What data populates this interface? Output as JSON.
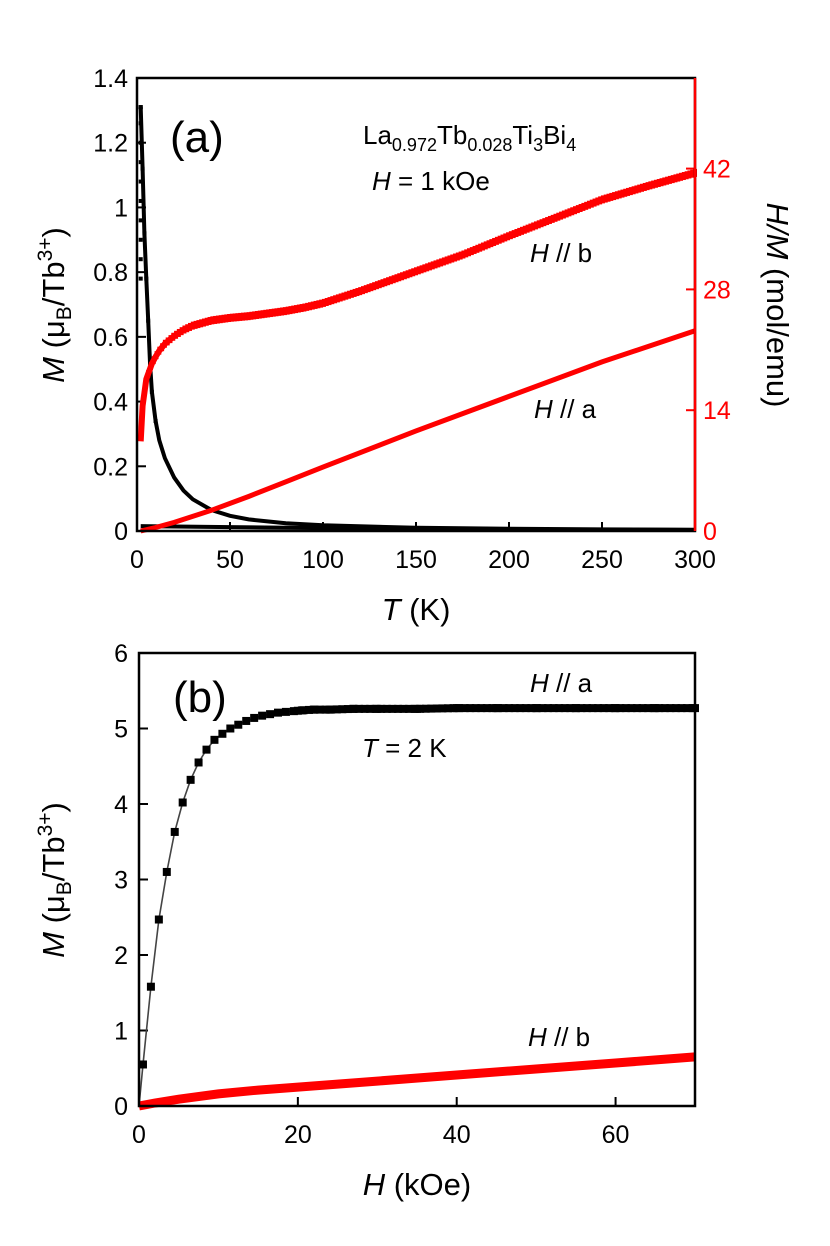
{
  "colors": {
    "black_series": "#000000",
    "red_series": "#ff0000",
    "axis": "#000000",
    "right_axis": "#ff0000"
  },
  "chart_data": [
    {
      "type": "line",
      "panel_label": "(a)",
      "compound": {
        "part1": "La",
        "sub1": "0.972",
        "part2": "Tb",
        "sub2": "0.028",
        "part3": "Ti",
        "sub3": "3",
        "part4": "Bi",
        "sub4": "4"
      },
      "field_label": {
        "var": "H",
        "rest": " = 1 kOe"
      },
      "xlabel": {
        "var": "T",
        "rest": " (K)"
      },
      "ylabel": {
        "var": "M",
        "rest_open": " (μ",
        "sub": "B",
        "rest_mid": "/Tb",
        "sup": "3+",
        "rest_close": ")"
      },
      "y2label": {
        "var": "H/M",
        "rest": " (mol/emu)"
      },
      "xlim": [
        0,
        300
      ],
      "ylim": [
        0,
        1.4
      ],
      "y2lim": [
        0,
        52.5
      ],
      "xticks": [
        "0",
        "50",
        "100",
        "150",
        "200",
        "250",
        "300"
      ],
      "yticks": [
        "0",
        "0.2",
        "0.4",
        "0.6",
        "0.8",
        "1",
        "1.2",
        "1.4"
      ],
      "y2ticks": [
        "0",
        "14",
        "28",
        "42"
      ],
      "series": [
        {
          "label_var": "H",
          "label_rest": " // b",
          "axis": "left",
          "color": "#000000",
          "x": [
            2,
            3,
            4,
            5,
            6,
            7,
            8,
            10,
            12,
            15,
            20,
            25,
            30,
            40,
            50,
            60,
            80,
            100,
            150,
            200,
            250,
            300
          ],
          "y": [
            1.31,
            1.12,
            0.92,
            0.78,
            0.65,
            0.52,
            0.43,
            0.34,
            0.28,
            0.225,
            0.165,
            0.125,
            0.098,
            0.065,
            0.047,
            0.036,
            0.024,
            0.018,
            0.01,
            0.007,
            0.005,
            0.004
          ]
        },
        {
          "label_var": "H",
          "label_rest": " // a",
          "axis": "left",
          "color": "#000000",
          "x": [
            2,
            50,
            100,
            150,
            200,
            250,
            300
          ],
          "y": [
            0.015,
            0.012,
            0.009,
            0.007,
            0.005,
            0.004,
            0.003
          ]
        },
        {
          "label_var": "H",
          "label_rest": " // b",
          "axis": "right",
          "color": "#ff0000",
          "x": [
            2,
            3,
            5,
            8,
            10,
            12,
            15,
            20,
            25,
            30,
            40,
            50,
            60,
            70,
            80,
            90,
            100,
            120,
            150,
            175,
            200,
            225,
            250,
            275,
            300
          ],
          "y": [
            10.4,
            14.5,
            17.6,
            19.4,
            20.2,
            20.9,
            21.7,
            22.6,
            23.3,
            23.8,
            24.4,
            24.7,
            24.9,
            25.2,
            25.5,
            25.9,
            26.4,
            27.8,
            30.1,
            32.0,
            34.2,
            36.3,
            38.4,
            40.0,
            41.5
          ]
        },
        {
          "label_var": "H",
          "label_rest": " // a",
          "axis": "right",
          "color": "#ff0000",
          "x": [
            2,
            10,
            20,
            40,
            60,
            80,
            100,
            150,
            200,
            250,
            300
          ],
          "y": [
            0.0,
            0.4,
            1.0,
            2.4,
            4.0,
            5.7,
            7.4,
            11.6,
            15.6,
            19.6,
            23.2
          ]
        }
      ]
    },
    {
      "type": "scatter",
      "panel_label": "(b)",
      "temp_label": {
        "var": "T",
        "rest": " = 2 K"
      },
      "xlabel": {
        "var": "H",
        "rest": " (kOe)"
      },
      "ylabel": {
        "var": "M",
        "rest_open": " (μ",
        "sub": "B",
        "rest_mid": "/Tb",
        "sup": "3+",
        "rest_close": ")"
      },
      "xlim": [
        0,
        70
      ],
      "ylim": [
        0,
        6
      ],
      "xticks": [
        "0",
        "20",
        "40",
        "60"
      ],
      "yticks": [
        "0",
        "1",
        "2",
        "3",
        "4",
        "5",
        "6"
      ],
      "series": [
        {
          "label_var": "H",
          "label_rest": " // a",
          "color": "#000000",
          "x": [
            0,
            0.5,
            1.5,
            2.5,
            3.5,
            4.5,
            5.5,
            6.5,
            7.5,
            8.5,
            9.5,
            10.5,
            11.5,
            12.5,
            13.5,
            14.5,
            15.5,
            16.5,
            17.5,
            18.5,
            19.5,
            20.5,
            22,
            24,
            27,
            30,
            35,
            40,
            45,
            50,
            55,
            60,
            65,
            70
          ],
          "y": [
            0.0,
            0.55,
            1.58,
            2.47,
            3.1,
            3.63,
            4.02,
            4.32,
            4.55,
            4.72,
            4.85,
            4.93,
            5.0,
            5.05,
            5.1,
            5.14,
            5.17,
            5.19,
            5.21,
            5.22,
            5.23,
            5.24,
            5.25,
            5.25,
            5.26,
            5.26,
            5.26,
            5.27,
            5.27,
            5.27,
            5.27,
            5.27,
            5.27,
            5.27
          ]
        },
        {
          "label_var": "H",
          "label_rest": " // b",
          "color": "#ff0000",
          "x": [
            0,
            2,
            5,
            10,
            15,
            20,
            25,
            30,
            40,
            50,
            60,
            70
          ],
          "y": [
            0.0,
            0.04,
            0.09,
            0.16,
            0.21,
            0.25,
            0.29,
            0.33,
            0.41,
            0.49,
            0.57,
            0.65
          ]
        }
      ]
    }
  ]
}
